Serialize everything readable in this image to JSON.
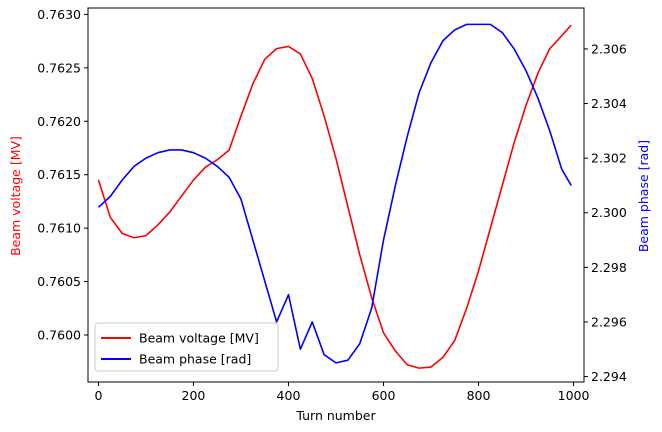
{
  "chart_data": {
    "type": "line",
    "title": "",
    "xlabel": "Turn number",
    "ylabel_left": "Beam voltage [MV]",
    "ylabel_right": "Beam phase [rad]",
    "xlim": [
      -22,
      1022
    ],
    "ylim_left": [
      0.75956,
      0.76306
    ],
    "ylim_right": [
      2.2938,
      2.3075
    ],
    "x_ticks": [
      0,
      200,
      400,
      600,
      800,
      1000
    ],
    "y_left_ticks": [
      0.76,
      0.7605,
      0.761,
      0.7615,
      0.762,
      0.7625,
      0.763
    ],
    "y_right_ticks": [
      2.294,
      2.296,
      2.298,
      2.3,
      2.302,
      2.304,
      2.306
    ],
    "grid": false,
    "legend_position": "lower-left",
    "series": [
      {
        "name": "Beam voltage [MV]",
        "axis": "left",
        "color": "#ff0000",
        "x": [
          0,
          25,
          50,
          75,
          100,
          125,
          150,
          175,
          200,
          225,
          250,
          275,
          300,
          325,
          350,
          375,
          400,
          425,
          450,
          475,
          500,
          525,
          550,
          575,
          600,
          625,
          650,
          675,
          700,
          725,
          750,
          775,
          800,
          825,
          850,
          875,
          900,
          925,
          950,
          975,
          995
        ],
        "y": [
          0.76145,
          0.7611,
          0.76095,
          0.76091,
          0.76093,
          0.76103,
          0.76115,
          0.7613,
          0.76145,
          0.76157,
          0.76164,
          0.76173,
          0.76205,
          0.76235,
          0.76258,
          0.76268,
          0.7627,
          0.76263,
          0.7624,
          0.76205,
          0.76165,
          0.7612,
          0.76075,
          0.76035,
          0.76002,
          0.75985,
          0.75972,
          0.75969,
          0.7597,
          0.75979,
          0.75995,
          0.76025,
          0.7606,
          0.761,
          0.7614,
          0.7618,
          0.76215,
          0.76245,
          0.76268,
          0.7628,
          0.7629
        ]
      },
      {
        "name": "Beam phase [rad]",
        "axis": "right",
        "color": "#0000ff",
        "x": [
          0,
          25,
          50,
          75,
          100,
          125,
          150,
          175,
          200,
          225,
          250,
          275,
          300,
          325,
          350,
          375,
          400,
          425,
          450,
          475,
          500,
          525,
          550,
          575,
          600,
          625,
          650,
          675,
          700,
          725,
          750,
          775,
          800,
          825,
          850,
          875,
          900,
          925,
          950,
          975,
          995
        ],
        "y": [
          2.3002,
          2.3006,
          2.3012,
          2.3017,
          2.302,
          2.3022,
          2.3023,
          2.3023,
          2.3022,
          2.302,
          2.3017,
          2.3013,
          2.3005,
          2.299,
          2.2975,
          2.296,
          2.297,
          2.295,
          2.296,
          2.2948,
          2.2945,
          2.2946,
          2.2952,
          2.2965,
          2.299,
          2.301,
          2.3028,
          2.3044,
          2.3055,
          2.3063,
          2.3067,
          2.3069,
          2.3069,
          2.3069,
          2.3066,
          2.306,
          2.3052,
          2.3042,
          2.303,
          2.3016,
          2.301
        ]
      }
    ]
  }
}
